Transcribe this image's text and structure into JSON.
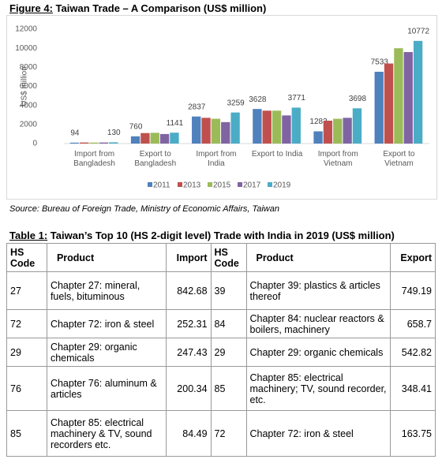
{
  "figure": {
    "label": "Figure 4:",
    "title": "Taiwan Trade – A Comparison (US$ million)"
  },
  "chart_data": {
    "type": "bar",
    "ylabel": "US$ million",
    "categories": [
      "Import from Bangladesh",
      "Export to Bangladesh",
      "Import from India",
      "Export to India",
      "Import from Vietnam",
      "Export to Vietnam"
    ],
    "series": [
      {
        "name": "2011",
        "color": "#4f81bd",
        "values": [
          94,
          760,
          2837,
          3628,
          1283,
          7533
        ],
        "data_labels": true
      },
      {
        "name": "2013",
        "color": "#c0504d",
        "values": [
          110,
          1100,
          2700,
          3450,
          2400,
          8400
        ],
        "data_labels": false
      },
      {
        "name": "2015",
        "color": "#9bbb59",
        "values": [
          100,
          1130,
          2600,
          3450,
          2600,
          10000
        ],
        "data_labels": false
      },
      {
        "name": "2017",
        "color": "#8064a2",
        "values": [
          110,
          1000,
          2250,
          2950,
          2700,
          9600
        ],
        "data_labels": false
      },
      {
        "name": "2019",
        "color": "#4bacc6",
        "values": [
          130,
          1141,
          3259,
          3771,
          3698,
          10772
        ],
        "data_labels": true
      }
    ],
    "ylim": [
      0,
      12000
    ],
    "yticks": [
      0,
      2000,
      4000,
      6000,
      8000,
      10000,
      12000
    ],
    "legend": "bottom"
  },
  "source": "Source: Bureau of Foreign Trade, Ministry of Economic Affairs, Taiwan",
  "table": {
    "label": "Table 1:",
    "title": "Taiwan’s Top 10 (HS 2-digit level) Trade with India in 2019 (US$ million)",
    "header": [
      "HS Code",
      "Product",
      "Import",
      "HS Code",
      "Product",
      "Export"
    ],
    "rows": [
      [
        27,
        "Chapter 27: mineral, fuels, bituminous",
        842.68,
        39,
        "Chapter 39: plastics & articles thereof",
        749.19
      ],
      [
        72,
        "Chapter 72: iron & steel",
        252.31,
        84,
        "Chapter 84: nuclear reactors & boilers, machinery",
        658.7
      ],
      [
        29,
        "Chapter 29: organic chemicals",
        247.43,
        29,
        "Chapter 29: organic chemicals",
        542.82
      ],
      [
        76,
        "Chapter 76: aluminum & articles",
        200.34,
        85,
        "Chapter 85: electrical machinery; TV, sound recorder, etc.",
        348.41
      ],
      [
        85,
        "Chapter 85: electrical machinery & TV, sound recorders etc.",
        84.49,
        72,
        "Chapter 72: iron & steel",
        163.75
      ]
    ]
  }
}
